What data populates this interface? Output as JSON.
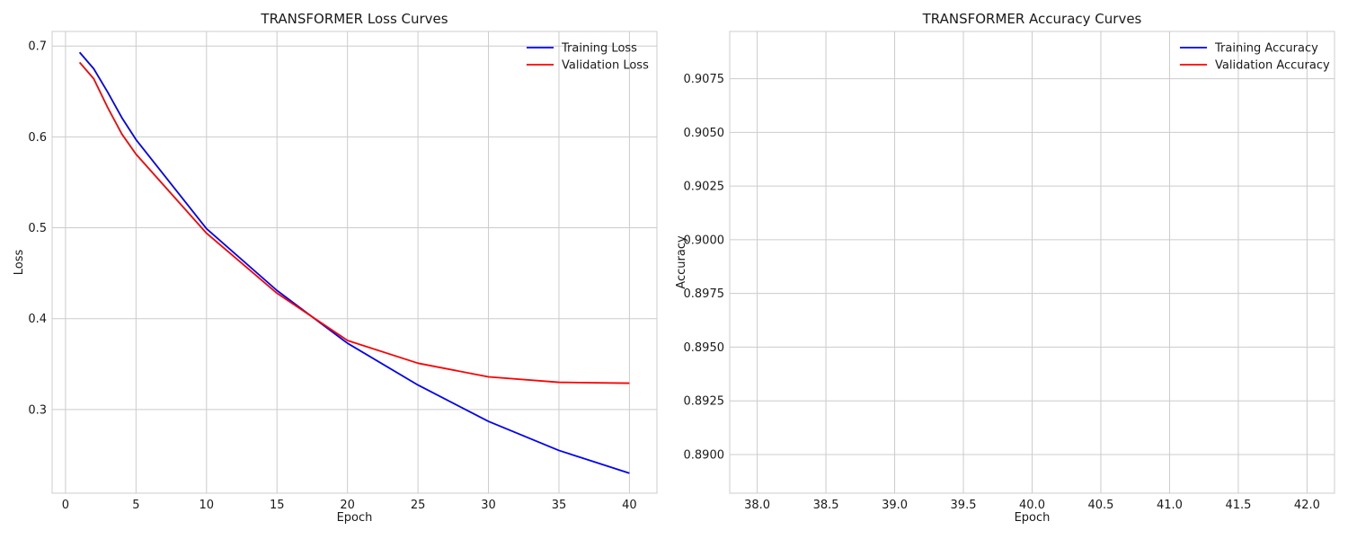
{
  "chart_data": [
    {
      "type": "line",
      "title": "TRANSFORMER Loss Curves",
      "xlabel": "Epoch",
      "ylabel": "Loss",
      "xlim": [
        -0.95,
        41.95
      ],
      "ylim": [
        0.208,
        0.716
      ],
      "xticks": [
        0,
        5,
        10,
        15,
        20,
        25,
        30,
        35,
        40
      ],
      "yticks": [
        0.3,
        0.4,
        0.5,
        0.6,
        0.7
      ],
      "grid": true,
      "legend_position": "top-right",
      "x": [
        1,
        2,
        3,
        4,
        5,
        10,
        15,
        20,
        25,
        30,
        35,
        40
      ],
      "series": [
        {
          "name": "Training Loss",
          "color": "#0000ff",
          "values": [
            0.693,
            0.675,
            0.649,
            0.621,
            0.597,
            0.499,
            0.431,
            0.373,
            0.327,
            0.287,
            0.255,
            0.23
          ]
        },
        {
          "name": "Validation Loss",
          "color": "#ff0000",
          "values": [
            0.682,
            0.664,
            0.632,
            0.603,
            0.581,
            0.494,
            0.428,
            0.376,
            0.351,
            0.336,
            0.33,
            0.329
          ]
        }
      ]
    },
    {
      "type": "line",
      "title": "TRANSFORMER Accuracy Curves",
      "xlabel": "Epoch",
      "ylabel": "Accuracy",
      "xlim": [
        37.8,
        42.2
      ],
      "ylim": [
        0.8882,
        0.9097
      ],
      "xticks": [
        38.0,
        38.5,
        39.0,
        39.5,
        40.0,
        40.5,
        41.0,
        41.5,
        42.0
      ],
      "xtick_labels": [
        "38.0",
        "38.5",
        "39.0",
        "39.5",
        "40.0",
        "40.5",
        "41.0",
        "41.5",
        "42.0"
      ],
      "yticks": [
        0.89,
        0.8925,
        0.895,
        0.8975,
        0.9,
        0.9025,
        0.905,
        0.9075
      ],
      "ytick_labels": [
        "0.8900",
        "0.8925",
        "0.8950",
        "0.8975",
        "0.9000",
        "0.9025",
        "0.9050",
        "0.9075"
      ],
      "grid": true,
      "legend_position": "top-right",
      "x": [],
      "series": [
        {
          "name": "Training Accuracy",
          "color": "#0000ff",
          "values": []
        },
        {
          "name": "Validation Accuracy",
          "color": "#ff0000",
          "values": []
        }
      ]
    }
  ]
}
